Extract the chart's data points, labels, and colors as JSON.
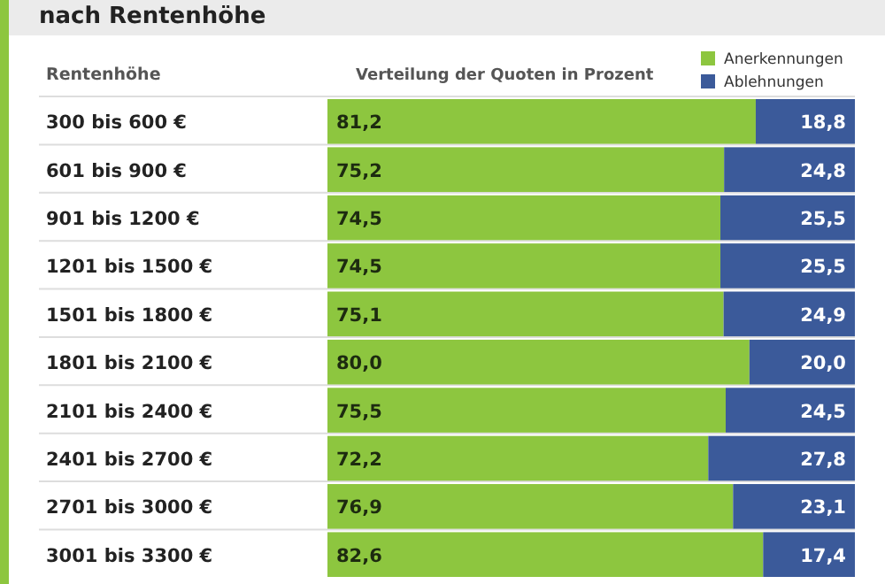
{
  "chart_data": {
    "type": "bar",
    "title": "nach Rentenhöhe",
    "ylabel": "Rentenhöhe",
    "xlabel": "Verteilung der Quoten in Prozent",
    "categories": [
      "300 bis 600 €",
      "601 bis 900 €",
      "901 bis 1200 €",
      "1201 bis 1500 €",
      "1501 bis 1800 €",
      "1801 bis 2100 €",
      "2101 bis 2400 €",
      "2401 bis 2700 €",
      "2701 bis 3000 €",
      "3001 bis 3300 €"
    ],
    "orientation": "horizontal",
    "stacked": true,
    "xlim": [
      0,
      100
    ],
    "legend": "top right",
    "series": [
      {
        "name": "Anerkennungen",
        "color": "#8dc63f",
        "values": [
          81.2,
          75.2,
          74.5,
          74.5,
          75.1,
          80.0,
          75.5,
          72.2,
          76.9,
          82.6
        ],
        "value_labels": [
          "81,2",
          "75,2",
          "74,5",
          "74,5",
          "75,1",
          "80,0",
          "75,5",
          "72,2",
          "76,9",
          "82,6"
        ]
      },
      {
        "name": "Ablehnungen",
        "color": "#3b5a9a",
        "values": [
          18.8,
          24.8,
          25.5,
          25.5,
          24.9,
          20.0,
          24.5,
          27.8,
          23.1,
          17.4
        ],
        "value_labels": [
          "18,8",
          "24,8",
          "25,5",
          "25,5",
          "24,9",
          "20,0",
          "24,5",
          "27,8",
          "23,1",
          "17,4"
        ]
      }
    ]
  }
}
